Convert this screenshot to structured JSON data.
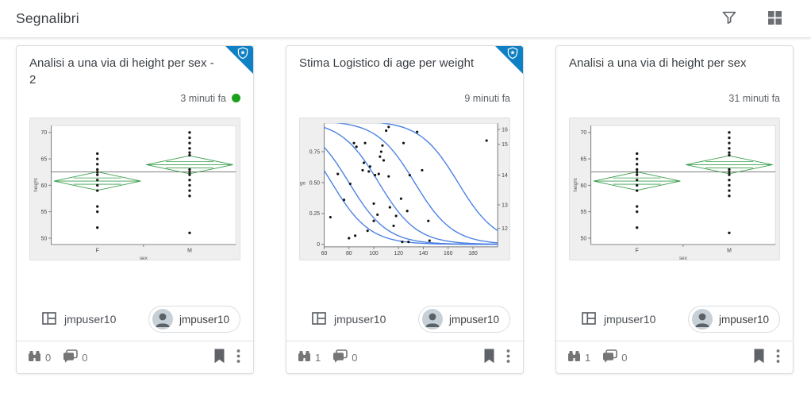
{
  "topbar": {
    "title": "Segnalibri",
    "filter_icon": "filter-funnel",
    "grid_icon": "grid-view"
  },
  "cards": [
    {
      "title": "Analisi a una via di height per sex - 2",
      "timestamp": "3 minuti fa",
      "status_dot": true,
      "certified_badge": true,
      "source_name": "jmpuser10",
      "owner_name": "jmpuser10",
      "views_count": "0",
      "comments_count": "0"
    },
    {
      "title": "Stima Logistico di age per weight",
      "timestamp": "9 minuti fa",
      "status_dot": false,
      "certified_badge": true,
      "source_name": "jmpuser10",
      "owner_name": "jmpuser10",
      "views_count": "1",
      "comments_count": "0"
    },
    {
      "title": "Analisi a una via di height per sex",
      "timestamp": "31 minuti fa",
      "status_dot": false,
      "certified_badge": false,
      "source_name": "jmpuser10",
      "owner_name": "jmpuser10",
      "views_count": "1",
      "comments_count": "0"
    }
  ],
  "chart_data": [
    {
      "type": "oneway-scatter",
      "title": "Analisi a una via di height per sex - 2",
      "xlabel": "sex",
      "ylabel": "height",
      "categories": [
        "F",
        "M"
      ],
      "ylim": [
        48.8,
        71.3
      ],
      "yticks": [
        50,
        55,
        60,
        65,
        70
      ],
      "grand_mean": 62.55,
      "groups": [
        {
          "label": "F",
          "points": [
            66,
            65,
            64,
            63,
            62.5,
            62,
            61,
            60,
            59,
            56,
            55,
            52
          ],
          "mean": 60.8,
          "diamond_top": 62.55,
          "diamond_bottom": 59.05,
          "overlap_top": 61.4,
          "overlap_bottom": 60.2
        },
        {
          "label": "M",
          "points": [
            70,
            69,
            68,
            67,
            66.2,
            65.7,
            63,
            62.5,
            62,
            61,
            60,
            59,
            58,
            51
          ],
          "mean": 63.9,
          "diamond_top": 65.6,
          "diamond_bottom": 62.2,
          "overlap_top": 64.5,
          "overlap_bottom": 63.3
        }
      ]
    },
    {
      "type": "logistic",
      "title": "Stima Logistico di age per weight",
      "xlabel": "weight",
      "ylabel": "age",
      "xlim": [
        60,
        200
      ],
      "xticks": [
        60,
        80,
        100,
        120,
        140,
        160,
        180
      ],
      "ylim": [
        0,
        1
      ],
      "yticks": [
        0,
        0.25,
        0.5,
        0.75
      ],
      "ytick_labels": [
        "0",
        "0.25",
        "0.50",
        "0.75"
      ],
      "right_axis": {
        "labels": [
          "12",
          "13",
          "14",
          "15",
          "16"
        ],
        "positions": [
          0.13,
          0.32,
          0.56,
          0.81,
          0.93
        ]
      },
      "curves": {
        "k": 0.065,
        "midpoints": [
          66,
          80,
          104,
          133,
          168
        ]
      },
      "points": [
        [
          65,
          0.22
        ],
        [
          71,
          0.57
        ],
        [
          76,
          0.36
        ],
        [
          80,
          0.05
        ],
        [
          81,
          0.49
        ],
        [
          84,
          0.82
        ],
        [
          85,
          0.07
        ],
        [
          86,
          0.79
        ],
        [
          91,
          0.6
        ],
        [
          92,
          0.66
        ],
        [
          93,
          0.82
        ],
        [
          95,
          0.11
        ],
        [
          96,
          0.59
        ],
        [
          97,
          0.63
        ],
        [
          100,
          0.33
        ],
        [
          100,
          0.19
        ],
        [
          101,
          0.56
        ],
        [
          103,
          0.24
        ],
        [
          104,
          0.57
        ],
        [
          105,
          0.71
        ],
        [
          106,
          0.75
        ],
        [
          107,
          0.8
        ],
        [
          108,
          0.68
        ],
        [
          110,
          0.92
        ],
        [
          112,
          0.95
        ],
        [
          112,
          0.55
        ],
        [
          113,
          0.3
        ],
        [
          116,
          0.15
        ],
        [
          118,
          0.23
        ],
        [
          122,
          0.37
        ],
        [
          123,
          0.02
        ],
        [
          124,
          0.82
        ],
        [
          127,
          0.27
        ],
        [
          128,
          0.02
        ],
        [
          129,
          0.56
        ],
        [
          135,
          0.91
        ],
        [
          139,
          0.6
        ],
        [
          144,
          0.19
        ],
        [
          145,
          0.03
        ],
        [
          191,
          0.84
        ]
      ]
    },
    {
      "type": "oneway-scatter",
      "title": "Analisi a una via di height per sex",
      "xlabel": "sex",
      "ylabel": "height",
      "categories": [
        "F",
        "M"
      ],
      "ylim": [
        48.8,
        71.3
      ],
      "yticks": [
        50,
        55,
        60,
        65,
        70
      ],
      "grand_mean": 62.55,
      "groups": [
        {
          "label": "F",
          "points": [
            66,
            65,
            64,
            63,
            62.5,
            62,
            61,
            60,
            59,
            56,
            55,
            52
          ],
          "mean": 60.8,
          "diamond_top": 62.55,
          "diamond_bottom": 59.05,
          "overlap_top": 61.4,
          "overlap_bottom": 60.2
        },
        {
          "label": "M",
          "points": [
            70,
            69,
            68,
            67,
            66.2,
            65.7,
            63,
            62.5,
            62,
            61,
            60,
            59,
            58,
            51
          ],
          "mean": 63.9,
          "diamond_top": 65.6,
          "diamond_bottom": 62.2,
          "overlap_top": 64.5,
          "overlap_bottom": 63.3
        }
      ]
    }
  ],
  "colors": {
    "badge_blue": "#0f80c4",
    "curve_blue": "#4a80e4",
    "diamond_green": "#3a9e4c",
    "status_green": "#1ba11b",
    "icon_gray": "#5f6368",
    "stat_gray": "#757575",
    "mean_line_gray": "#6b6b6b"
  }
}
